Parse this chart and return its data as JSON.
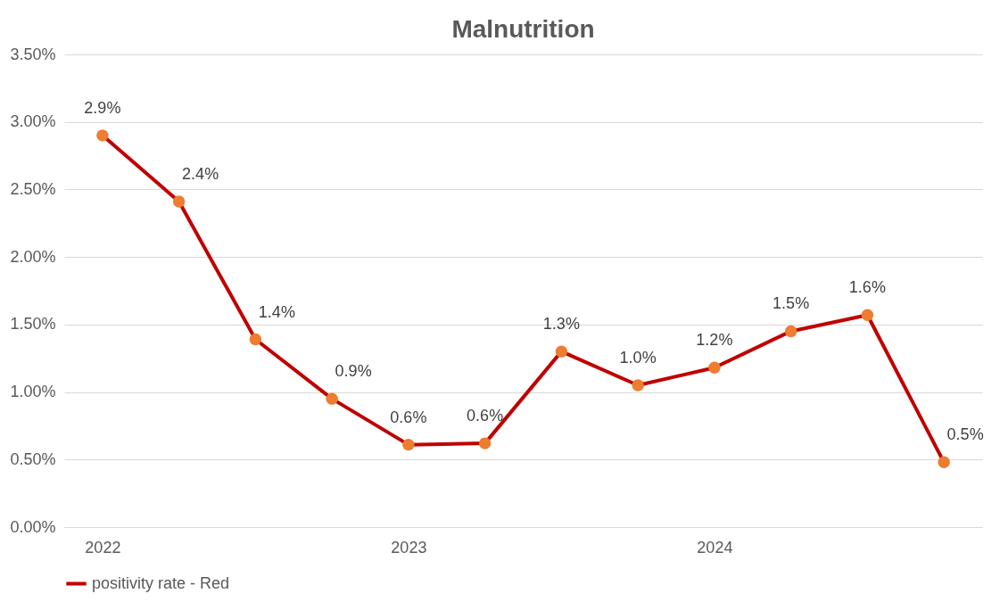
{
  "chart_data": {
    "type": "line",
    "title": "Malnutrition",
    "categories": [
      "2022",
      null,
      null,
      null,
      "2023",
      null,
      null,
      null,
      "2024",
      null,
      null,
      null
    ],
    "series": [
      {
        "name": "positivity rate - Red",
        "color": "#c00000",
        "colors": [
          "#ed7d31",
          "#ed7d31",
          "#ed7d31",
          "#ed7d31",
          "#ed7d31",
          "#ed7d31",
          "#ed7d31",
          "#ed7d31",
          "#ed7d31",
          "#ed7d31",
          "#ed7d31",
          "#ed7d31"
        ],
        "values": [
          2.9,
          2.41,
          1.39,
          0.95,
          0.61,
          0.62,
          1.3,
          1.05,
          1.18,
          1.45,
          1.57,
          0.48
        ],
        "value_labels": [
          "2.9%",
          "2.4%",
          "1.4%",
          "0.9%",
          "0.6%",
          "0.6%",
          "1.3%",
          "1.0%",
          "1.2%",
          "1.5%",
          "1.6%",
          "0.5%"
        ]
      }
    ],
    "ylim": [
      0,
      3.5
    ],
    "yticks": [
      {
        "value": 0,
        "label": "0.00%"
      },
      {
        "value": 0.5,
        "label": "0.50%"
      },
      {
        "value": 1,
        "label": "1.00%"
      },
      {
        "value": 1.5,
        "label": "1.50%"
      },
      {
        "value": 2,
        "label": "2.00%"
      },
      {
        "value": 2.5,
        "label": "2.50%"
      },
      {
        "value": 3,
        "label": "3.00%"
      },
      {
        "value": 3.5,
        "label": "3.50%"
      }
    ],
    "grid": "y",
    "legend": "bottom",
    "marker": "circle",
    "line_style": "solid"
  }
}
